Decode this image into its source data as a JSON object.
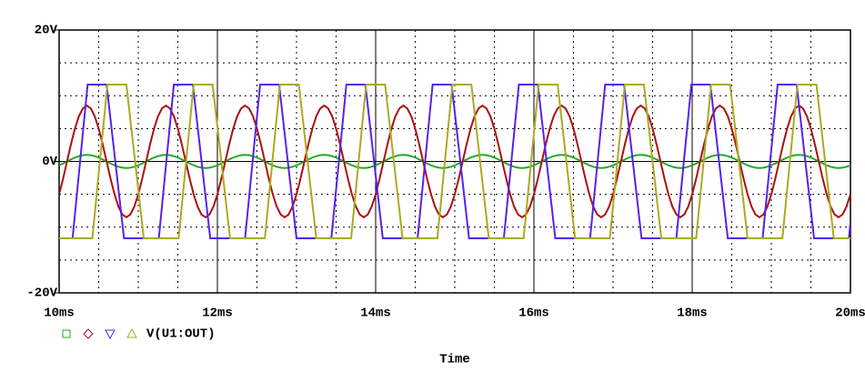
{
  "chart_data": {
    "type": "line",
    "x_label": "Time",
    "legend_text": "V(U1:OUT)",
    "xlim": [
      10,
      20
    ],
    "ylim": [
      -20,
      20
    ],
    "xticks": [
      {
        "value": 10,
        "label": "10ms"
      },
      {
        "value": 12,
        "label": "12ms"
      },
      {
        "value": 14,
        "label": "14ms"
      },
      {
        "value": 16,
        "label": "16ms"
      },
      {
        "value": 18,
        "label": "18ms"
      },
      {
        "value": 20,
        "label": "20ms"
      }
    ],
    "yticks": [
      {
        "value": -20,
        "label": "-20V"
      },
      {
        "value": 0,
        "label": "0V"
      },
      {
        "value": 20,
        "label": "20V"
      }
    ],
    "x_minor_grid": [
      10.5,
      11,
      11.5,
      12.5,
      13,
      13.5,
      14.5,
      15,
      15.5,
      16.5,
      17,
      17.5,
      18.5,
      19,
      19.5
    ],
    "y_minor_grid": [
      -15,
      -10,
      -5,
      5,
      10,
      15
    ],
    "grid": true,
    "x": [
      10,
      10.05,
      10.1,
      10.15,
      10.2,
      10.25,
      10.3,
      10.35,
      10.4,
      10.45,
      10.5,
      10.55,
      10.6,
      10.65,
      10.7,
      10.75,
      10.8,
      10.85,
      10.9,
      10.95,
      11,
      11.05,
      11.1,
      11.15,
      11.2,
      11.25,
      11.3,
      11.35,
      11.4,
      11.45,
      11.5,
      11.55,
      11.6,
      11.65,
      11.7,
      11.75,
      11.8,
      11.85,
      11.9,
      11.95,
      12,
      12.05,
      12.1,
      12.15,
      12.2,
      12.25,
      12.3,
      12.35,
      12.4,
      12.45,
      12.5,
      12.55,
      12.6,
      12.65,
      12.7,
      12.75,
      12.8,
      12.85,
      12.9,
      12.95,
      13,
      13.05,
      13.1,
      13.15,
      13.2,
      13.25,
      13.3,
      13.35,
      13.4,
      13.45,
      13.5,
      13.55,
      13.6,
      13.65,
      13.7,
      13.75,
      13.8,
      13.85,
      13.9,
      13.95,
      14,
      14.05,
      14.1,
      14.15,
      14.2,
      14.25,
      14.3,
      14.35,
      14.4,
      14.45,
      14.5,
      14.55,
      14.6,
      14.65,
      14.7,
      14.75,
      14.8,
      14.85,
      14.9,
      14.95,
      15,
      15.05,
      15.1,
      15.15,
      15.2,
      15.25,
      15.3,
      15.35,
      15.4,
      15.45,
      15.5,
      15.55,
      15.6,
      15.65,
      15.7,
      15.75,
      15.8,
      15.85,
      15.9,
      15.95,
      16,
      16.05,
      16.1,
      16.15,
      16.2,
      16.25,
      16.3,
      16.35,
      16.4,
      16.45,
      16.5,
      16.55,
      16.6,
      16.65,
      16.7,
      16.75,
      16.8,
      16.85,
      16.9,
      16.95,
      17,
      17.05,
      17.1,
      17.15,
      17.2,
      17.25,
      17.3,
      17.35,
      17.4,
      17.45,
      17.5,
      17.55,
      17.6,
      17.65,
      17.7,
      17.75,
      17.8,
      17.85,
      17.9,
      17.95,
      18,
      18.05,
      18.1,
      18.15,
      18.2,
      18.25,
      18.3,
      18.35,
      18.4,
      18.45,
      18.5,
      18.55,
      18.6,
      18.65,
      18.7,
      18.75,
      18.8,
      18.85,
      18.9,
      18.95,
      19,
      19.05,
      19.1,
      19.15,
      19.2,
      19.25,
      19.3,
      19.35,
      19.4,
      19.45,
      19.5,
      19.55,
      19.6,
      19.65,
      19.7,
      19.75,
      19.8,
      19.85,
      19.9,
      19.95,
      20
    ],
    "series": [
      {
        "color": "#22aa22",
        "values": [
          -0.59,
          -0.31,
          0,
          0.31,
          0.59,
          0.81,
          0.95,
          1,
          0.95,
          0.81,
          0.59,
          0.31,
          0,
          -0.31,
          -0.59,
          -0.81,
          -0.95,
          -1,
          -0.95,
          -0.81,
          -0.59,
          -0.31,
          0,
          0.31,
          0.59,
          0.81,
          0.95,
          1,
          0.95,
          0.81,
          0.59,
          0.31,
          0,
          -0.31,
          -0.59,
          -0.81,
          -0.95,
          -1,
          -0.95,
          -0.81,
          -0.59,
          -0.31,
          0,
          0.31,
          0.59,
          0.81,
          0.95,
          1,
          0.95,
          0.81,
          0.59,
          0.31,
          0,
          -0.31,
          -0.59,
          -0.81,
          -0.95,
          -1,
          -0.95,
          -0.81,
          -0.59,
          -0.31,
          0,
          0.31,
          0.59,
          0.81,
          0.95,
          1,
          0.95,
          0.81,
          0.59,
          0.31,
          0,
          -0.31,
          -0.59,
          -0.81,
          -0.95,
          -1,
          -0.95,
          -0.81,
          -0.59,
          -0.31,
          0,
          0.31,
          0.59,
          0.81,
          0.95,
          1,
          0.95,
          0.81,
          0.59,
          0.31,
          0,
          -0.31,
          -0.59,
          -0.81,
          -0.95,
          -1,
          -0.95,
          -0.81,
          -0.59,
          -0.31,
          0,
          0.31,
          0.59,
          0.81,
          0.95,
          1,
          0.95,
          0.81,
          0.59,
          0.31,
          0,
          -0.31,
          -0.59,
          -0.81,
          -0.95,
          -1,
          -0.95,
          -0.81,
          -0.59,
          -0.31,
          0,
          0.31,
          0.59,
          0.81,
          0.95,
          1,
          0.95,
          0.81,
          0.59,
          0.31,
          0,
          -0.31,
          -0.59,
          -0.81,
          -0.95,
          -1,
          -0.95,
          -0.81,
          -0.59,
          -0.31,
          0,
          0.31,
          0.59,
          0.81,
          0.95,
          1,
          0.95,
          0.81,
          0.59,
          0.31,
          0,
          -0.31,
          -0.59,
          -0.81,
          -0.95,
          -1,
          -0.95,
          -0.81,
          -0.59,
          -0.31,
          0,
          0.31,
          0.59,
          0.81,
          0.95,
          1,
          0.95,
          0.81,
          0.59,
          0.31,
          0,
          -0.31,
          -0.59,
          -0.81,
          -0.95,
          -1,
          -0.95,
          -0.81,
          -0.59,
          -0.31,
          0,
          0.31,
          0.59,
          0.81,
          0.95,
          1,
          0.95,
          0.81,
          0.59,
          0.31,
          0,
          -0.31,
          -0.59,
          -0.81,
          -0.95,
          -1,
          -0.95,
          -0.81,
          -0.59
        ]
      },
      {
        "color": "#aa1111",
        "values": [
          -5,
          -2.63,
          0,
          2.63,
          5,
          6.88,
          8.08,
          8.5,
          8.08,
          6.88,
          5,
          2.63,
          0,
          -2.63,
          -5,
          -6.88,
          -8.08,
          -8.5,
          -8.08,
          -6.88,
          -5,
          -2.63,
          0,
          2.63,
          5,
          6.88,
          8.08,
          8.5,
          8.08,
          6.88,
          5,
          2.63,
          0,
          -2.63,
          -5,
          -6.88,
          -8.08,
          -8.5,
          -8.08,
          -6.88,
          -5,
          -2.63,
          0,
          2.63,
          5,
          6.88,
          8.08,
          8.5,
          8.08,
          6.88,
          5,
          2.63,
          0,
          -2.63,
          -5,
          -6.88,
          -8.08,
          -8.5,
          -8.08,
          -6.88,
          -5,
          -2.63,
          0,
          2.63,
          5,
          6.88,
          8.08,
          8.5,
          8.08,
          6.88,
          5,
          2.63,
          0,
          -2.63,
          -5,
          -6.88,
          -8.08,
          -8.5,
          -8.08,
          -6.88,
          -5,
          -2.63,
          0,
          2.63,
          5,
          6.88,
          8.08,
          8.5,
          8.08,
          6.88,
          5,
          2.63,
          0,
          -2.63,
          -5,
          -6.88,
          -8.08,
          -8.5,
          -8.08,
          -6.88,
          -5,
          -2.63,
          0,
          2.63,
          5,
          6.88,
          8.08,
          8.5,
          8.08,
          6.88,
          5,
          2.63,
          0,
          -2.63,
          -5,
          -6.88,
          -8.08,
          -8.5,
          -8.08,
          -6.88,
          -5,
          -2.63,
          0,
          2.63,
          5,
          6.88,
          8.08,
          8.5,
          8.08,
          6.88,
          5,
          2.63,
          0,
          -2.63,
          -5,
          -6.88,
          -8.08,
          -8.5,
          -8.08,
          -6.88,
          -5,
          -2.63,
          0,
          2.63,
          5,
          6.88,
          8.08,
          8.5,
          8.08,
          6.88,
          5,
          2.63,
          0,
          -2.63,
          -5,
          -6.88,
          -8.08,
          -8.5,
          -8.08,
          -6.88,
          -5,
          -2.63,
          0,
          2.63,
          5,
          6.88,
          8.08,
          8.5,
          8.08,
          6.88,
          5,
          2.63,
          0,
          -2.63,
          -5,
          -6.88,
          -8.08,
          -8.5,
          -8.08,
          -6.88,
          -5,
          -2.63,
          0,
          2.63,
          5,
          6.88,
          8.08,
          8.5,
          8.08,
          6.88,
          5,
          2.63,
          0,
          -2.63,
          -5,
          -6.88,
          -8.08,
          -8.5,
          -8.08,
          -6.88,
          -5
        ]
      },
      {
        "color": "#5522ee",
        "x": [
          10,
          10.17,
          10.36,
          10.6,
          10.82,
          11.26,
          11.45,
          11.69,
          11.91,
          12.35,
          12.54,
          12.78,
          13,
          13.44,
          13.63,
          13.87,
          14.09,
          14.53,
          14.72,
          14.96,
          15.18,
          15.62,
          15.81,
          16.05,
          16.27,
          16.71,
          16.9,
          17.14,
          17.36,
          17.8,
          17.99,
          18.23,
          18.45,
          18.89,
          19.08,
          19.32,
          19.54,
          19.98,
          20
        ],
        "values": [
          -11.7,
          -11.7,
          11.7,
          11.7,
          -11.7,
          -11.7,
          11.7,
          11.7,
          -11.7,
          -11.7,
          11.7,
          11.7,
          -11.7,
          -11.7,
          11.7,
          11.7,
          -11.7,
          -11.7,
          11.7,
          11.7,
          -11.7,
          -11.7,
          11.7,
          11.7,
          -11.7,
          -11.7,
          11.7,
          11.7,
          -11.7,
          -11.7,
          11.7,
          11.7,
          -11.7,
          -11.7,
          11.7,
          11.7,
          -11.7,
          -11.7,
          -9.24
        ]
      },
      {
        "color": "#aaaa22",
        "x": [
          10,
          10.42,
          10.61,
          10.85,
          11.07,
          11.51,
          11.7,
          11.94,
          12.16,
          12.6,
          12.79,
          13.03,
          13.25,
          13.69,
          13.88,
          14.12,
          14.34,
          14.78,
          14.97,
          15.21,
          15.43,
          15.87,
          16.06,
          16.3,
          16.52,
          16.96,
          17.15,
          17.39,
          17.61,
          18.05,
          18.24,
          18.48,
          18.7,
          19.14,
          19.33,
          19.57,
          19.79,
          20
        ],
        "values": [
          -11.7,
          -11.7,
          11.7,
          11.7,
          -11.7,
          -11.7,
          11.7,
          11.7,
          -11.7,
          -11.7,
          11.7,
          11.7,
          -11.7,
          -11.7,
          11.7,
          11.7,
          -11.7,
          -11.7,
          11.7,
          11.7,
          -11.7,
          -11.7,
          11.7,
          11.7,
          -11.7,
          -11.7,
          11.7,
          11.7,
          -11.7,
          -11.7,
          11.7,
          11.7,
          -11.7,
          -11.7,
          11.7,
          11.7,
          -11.7,
          -11.7
        ]
      }
    ]
  }
}
